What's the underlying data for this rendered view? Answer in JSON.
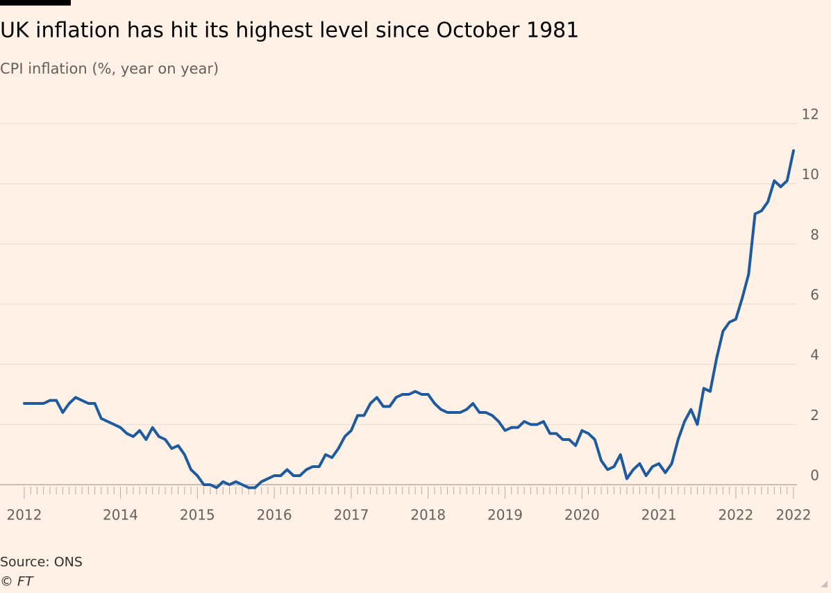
{
  "chart_data": {
    "type": "line",
    "title": "UK inflation has hit its highest level since October 1981",
    "subtitle": "CPI inflation (%, year on year)",
    "source": "Source: ONS",
    "credit": "© FT",
    "categories": [
      "2012",
      null,
      null,
      null,
      null,
      null,
      null,
      null,
      null,
      null,
      null,
      null,
      null,
      null,
      null,
      "2014",
      null,
      null,
      null,
      null,
      null,
      null,
      null,
      null,
      null,
      null,
      null,
      "2015",
      null,
      null,
      null,
      null,
      null,
      null,
      null,
      null,
      null,
      null,
      null,
      "2016",
      null,
      null,
      null,
      null,
      null,
      null,
      null,
      null,
      null,
      null,
      null,
      "2017",
      null,
      null,
      null,
      null,
      null,
      null,
      null,
      null,
      null,
      null,
      null,
      "2018",
      null,
      null,
      null,
      null,
      null,
      null,
      null,
      null,
      null,
      null,
      null,
      "2019",
      null,
      null,
      null,
      null,
      null,
      null,
      null,
      null,
      null,
      null,
      null,
      "2020",
      null,
      null,
      null,
      null,
      null,
      null,
      null,
      null,
      null,
      null,
      null,
      "2021",
      null,
      null,
      null,
      null,
      null,
      null,
      null,
      null,
      null,
      null,
      null,
      "2022",
      null,
      null,
      null,
      null,
      null,
      null,
      null,
      null,
      "2022"
    ],
    "series": [
      {
        "name": "CPI inflation",
        "color": "#1e5aa0",
        "values": [
          2.7,
          2.7,
          2.7,
          2.7,
          2.8,
          2.8,
          2.4,
          2.7,
          2.9,
          2.8,
          2.7,
          2.7,
          2.2,
          2.1,
          2.0,
          1.9,
          1.7,
          1.6,
          1.8,
          1.5,
          1.9,
          1.6,
          1.5,
          1.2,
          1.3,
          1.0,
          0.5,
          0.3,
          0.0,
          0.0,
          -0.1,
          0.1,
          0.0,
          0.1,
          0.0,
          -0.1,
          -0.1,
          0.1,
          0.2,
          0.3,
          0.3,
          0.5,
          0.3,
          0.3,
          0.5,
          0.6,
          0.6,
          1.0,
          0.9,
          1.2,
          1.6,
          1.8,
          2.3,
          2.3,
          2.7,
          2.9,
          2.6,
          2.6,
          2.9,
          3.0,
          3.0,
          3.1,
          3.0,
          3.0,
          2.7,
          2.5,
          2.4,
          2.4,
          2.4,
          2.5,
          2.7,
          2.4,
          2.4,
          2.3,
          2.1,
          1.8,
          1.9,
          1.9,
          2.1,
          2.0,
          2.0,
          2.1,
          1.7,
          1.7,
          1.5,
          1.5,
          1.3,
          1.8,
          1.7,
          1.5,
          0.8,
          0.5,
          0.6,
          1.0,
          0.2,
          0.5,
          0.7,
          0.3,
          0.6,
          0.7,
          0.4,
          0.7,
          1.5,
          2.1,
          2.5,
          2.0,
          3.2,
          3.1,
          4.2,
          5.1,
          5.4,
          5.5,
          6.2,
          7.0,
          9.0,
          9.1,
          9.4,
          10.1,
          9.9,
          10.1,
          11.1
        ]
      }
    ],
    "ylim": [
      0,
      12
    ],
    "yticks": [
      0,
      2,
      4,
      6,
      8,
      10,
      12
    ],
    "grid": true
  }
}
